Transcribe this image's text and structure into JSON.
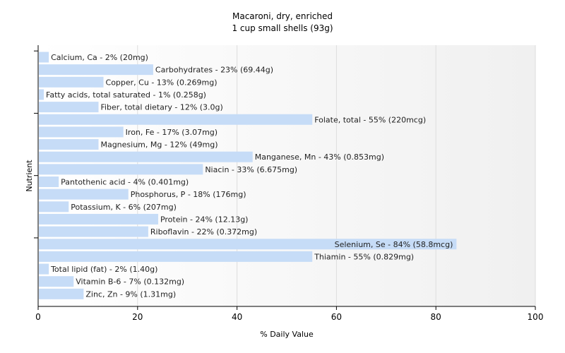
{
  "chart_data": {
    "type": "bar",
    "orientation": "horizontal",
    "title": "Macaroni, dry, enriched",
    "subtitle": "1 cup small shells (93g)",
    "xlabel": "% Daily Value",
    "ylabel": "Nutrient",
    "xlim": [
      0,
      100
    ],
    "xticks": [
      0,
      20,
      40,
      60,
      80,
      100
    ],
    "bar_color": "#c6dcf7",
    "grid": true,
    "categories": [
      "Calcium, Ca",
      "Carbohydrates",
      "Copper, Cu",
      "Fatty acids, total saturated",
      "Fiber, total dietary",
      "Folate, total",
      "Iron, Fe",
      "Magnesium, Mg",
      "Manganese, Mn",
      "Niacin",
      "Pantothenic acid",
      "Phosphorus, P",
      "Potassium, K",
      "Protein",
      "Riboflavin",
      "Selenium, Se",
      "Thiamin",
      "Total lipid (fat)",
      "Vitamin B-6",
      "Zinc, Zn"
    ],
    "values": [
      2,
      23,
      13,
      1,
      12,
      55,
      17,
      12,
      43,
      33,
      4,
      18,
      6,
      24,
      22,
      84,
      55,
      2,
      7,
      9
    ],
    "labels": [
      "Calcium, Ca - 2% (20mg)",
      "Carbohydrates - 23% (69.44g)",
      "Copper, Cu - 13% (0.269mg)",
      "Fatty acids, total saturated - 1% (0.258g)",
      "Fiber, total dietary - 12% (3.0g)",
      "Folate, total - 55% (220mcg)",
      "Iron, Fe - 17% (3.07mg)",
      "Magnesium, Mg - 12% (49mg)",
      "Manganese, Mn - 43% (0.853mg)",
      "Niacin - 33% (6.675mg)",
      "Pantothenic acid - 4% (0.401mg)",
      "Phosphorus, P - 18% (176mg)",
      "Potassium, K - 6% (207mg)",
      "Protein - 24% (12.13g)",
      "Riboflavin - 22% (0.372mg)",
      "Selenium, Se - 84% (58.8mcg)",
      "Thiamin - 55% (0.829mg)",
      "Total lipid (fat) - 2% (1.40g)",
      "Vitamin B-6 - 7% (0.132mg)",
      "Zinc, Zn - 9% (1.31mg)"
    ]
  }
}
